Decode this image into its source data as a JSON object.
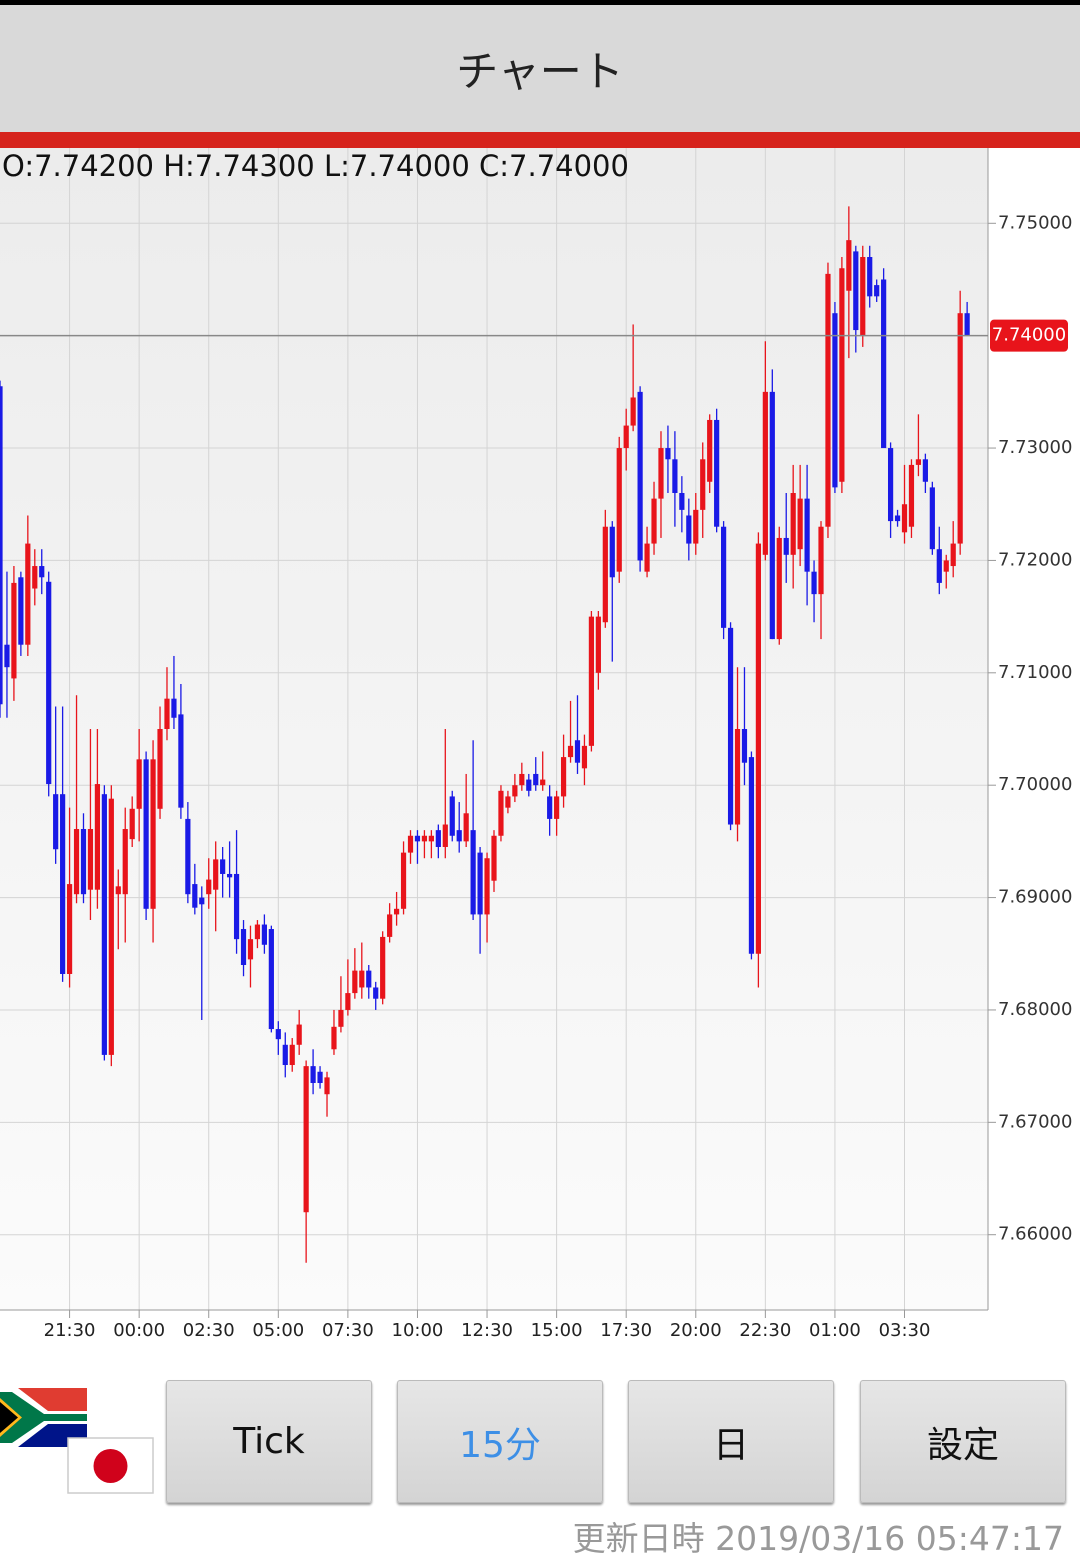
{
  "header": {
    "title": "チャート"
  },
  "chart_data": {
    "type": "candlestick",
    "ohlc_label": "O:7.74200 H:7.74300 L:7.74000 C:7.74000",
    "up_color": "#e8141b",
    "down_color": "#1a1ae6",
    "xlim": [
      0,
      142
    ],
    "xticks": [
      {
        "value": 10,
        "label": "21:30"
      },
      {
        "value": 20,
        "label": "00:00"
      },
      {
        "value": 30,
        "label": "02:30"
      },
      {
        "value": 40,
        "label": "05:00"
      },
      {
        "value": 50,
        "label": "07:30"
      },
      {
        "value": 60,
        "label": "10:00"
      },
      {
        "value": 70,
        "label": "12:30"
      },
      {
        "value": 80,
        "label": "15:00"
      },
      {
        "value": 90,
        "label": "17:30"
      },
      {
        "value": 100,
        "label": "20:00"
      },
      {
        "value": 110,
        "label": "22:30"
      },
      {
        "value": 120,
        "label": "01:00"
      },
      {
        "value": 130,
        "label": "03:30"
      }
    ],
    "ylim": [
      7.6533,
      7.7567
    ],
    "yticks": [
      {
        "value": 7.66,
        "label": "7.66000"
      },
      {
        "value": 7.67,
        "label": "7.67000"
      },
      {
        "value": 7.68,
        "label": "7.68000"
      },
      {
        "value": 7.69,
        "label": "7.69000"
      },
      {
        "value": 7.7,
        "label": "7.70000"
      },
      {
        "value": 7.71,
        "label": "7.71000"
      },
      {
        "value": 7.72,
        "label": "7.72000"
      },
      {
        "value": 7.73,
        "label": "7.73000"
      },
      {
        "value": 7.75,
        "label": "7.75000"
      }
    ],
    "grid": true,
    "last_price": {
      "value": 7.74,
      "label": "7.74000"
    },
    "open": [
      7.7355,
      7.7125,
      7.7095,
      7.7185,
      7.7125,
      7.7175,
      7.7195,
      7.7181,
      7.6992,
      7.6992,
      7.6832,
      7.6903,
      7.6961,
      7.6907,
      7.6907,
      7.6992,
      7.676,
      7.6903,
      7.6903,
      7.6952,
      7.6979,
      7.7023,
      7.689,
      7.6979,
      7.705,
      7.7077,
      7.7063,
      7.697,
      7.6912,
      7.69,
      7.6903,
      7.6907,
      7.6934,
      7.6921,
      7.6921,
      7.6872,
      7.6845,
      7.6863,
      7.6876,
      7.6872,
      7.6783,
      7.6769,
      7.6751,
      7.6769,
      7.662,
      7.675,
      7.6745,
      7.6725,
      7.6765,
      7.6785,
      7.68,
      7.6815,
      7.682,
      7.6835,
      7.682,
      7.681,
      7.6865,
      7.6885,
      7.689,
      7.694,
      7.6955,
      7.695,
      7.695,
      7.696,
      7.6945,
      7.699,
      7.696,
      7.695,
      7.696,
      7.694,
      7.6885,
      7.6915,
      7.6955,
      7.698,
      7.699,
      7.7,
      7.7005,
      7.701,
      7.7,
      7.699,
      7.697,
      7.699,
      7.7025,
      7.704,
      7.7015,
      7.7035,
      7.71,
      7.7145,
      7.723,
      7.719,
      7.73,
      7.732,
      7.735,
      7.719,
      7.7215,
      7.7255,
      7.73,
      7.729,
      7.726,
      7.724,
      7.7215,
      7.7245,
      7.727,
      7.7325,
      7.723,
      7.714,
      7.6965,
      7.705,
      7.7025,
      7.685,
      7.7205,
      7.735,
      7.713,
      7.722,
      7.7205,
      7.721,
      7.7255,
      7.719,
      7.717,
      7.723,
      7.742,
      7.727,
      7.744,
      7.7475,
      7.74,
      7.747,
      7.7445,
      7.745,
      7.73,
      7.724,
      7.7225,
      7.723,
      7.7285,
      7.729,
      7.7265,
      7.721,
      7.719,
      7.7195,
      7.7215,
      7.742
    ],
    "high": [
      7.736,
      7.719,
      7.7195,
      7.719,
      7.724,
      7.721,
      7.721,
      7.719,
      7.707,
      7.707,
      7.698,
      7.708,
      7.6975,
      7.705,
      7.705,
      7.7,
      7.7,
      7.6925,
      7.698,
      7.699,
      7.705,
      7.703,
      7.704,
      7.707,
      7.7105,
      7.7115,
      7.709,
      7.6985,
      7.693,
      7.691,
      7.6935,
      7.695,
      7.6945,
      7.695,
      7.696,
      7.688,
      7.6875,
      7.688,
      7.6885,
      7.6875,
      7.679,
      7.678,
      7.6775,
      7.68,
      7.6755,
      7.6765,
      7.675,
      7.6745,
      7.68,
      7.683,
      7.6845,
      7.6855,
      7.686,
      7.684,
      7.6825,
      7.687,
      7.6895,
      7.6905,
      7.695,
      7.696,
      7.696,
      7.696,
      7.696,
      7.6965,
      7.705,
      7.6995,
      7.6985,
      7.701,
      7.704,
      7.6945,
      7.694,
      7.696,
      7.7,
      7.6995,
      7.701,
      7.702,
      7.701,
      7.7025,
      7.703,
      7.7,
      7.6995,
      7.7045,
      7.7075,
      7.708,
      7.7045,
      7.7155,
      7.7155,
      7.7245,
      7.7235,
      7.731,
      7.7335,
      7.741,
      7.7355,
      7.723,
      7.727,
      7.7315,
      7.732,
      7.7315,
      7.7275,
      7.7255,
      7.726,
      7.7305,
      7.733,
      7.7335,
      7.7235,
      7.7145,
      7.7105,
      7.7105,
      7.703,
      7.7225,
      7.7395,
      7.737,
      7.723,
      7.726,
      7.7285,
      7.7285,
      7.7285,
      7.72,
      7.7235,
      7.7465,
      7.743,
      7.747,
      7.7515,
      7.748,
      7.748,
      7.748,
      7.745,
      7.746,
      7.7305,
      7.7245,
      7.7285,
      7.729,
      7.733,
      7.7295,
      7.727,
      7.723,
      7.7205,
      7.7235,
      7.744,
      7.743
    ],
    "low": [
      7.706,
      7.706,
      7.7075,
      7.7115,
      7.7115,
      7.716,
      7.717,
      7.699,
      7.693,
      7.6825,
      7.682,
      7.6895,
      7.6895,
      7.688,
      7.689,
      7.6755,
      7.675,
      7.6854,
      7.686,
      7.6945,
      7.695,
      7.688,
      7.686,
      7.697,
      7.704,
      7.705,
      7.697,
      7.6895,
      7.6885,
      7.6791,
      7.689,
      7.687,
      7.69,
      7.69,
      7.685,
      7.683,
      7.682,
      7.6855,
      7.685,
      7.678,
      7.676,
      7.674,
      7.6745,
      7.676,
      7.6575,
      7.6725,
      7.673,
      7.6705,
      7.676,
      7.678,
      7.6795,
      7.681,
      7.681,
      7.681,
      7.68,
      7.6805,
      7.686,
      7.6875,
      7.6885,
      7.693,
      7.693,
      7.6935,
      7.6935,
      7.6935,
      7.6935,
      7.695,
      7.694,
      7.6945,
      7.688,
      7.685,
      7.686,
      7.6905,
      7.695,
      7.6975,
      7.6985,
      7.6995,
      7.699,
      7.6995,
      7.6995,
      7.6955,
      7.6955,
      7.698,
      7.702,
      7.701,
      7.7,
      7.703,
      7.7085,
      7.714,
      7.711,
      7.718,
      7.728,
      7.7315,
      7.719,
      7.7185,
      7.7205,
      7.722,
      7.726,
      7.723,
      7.7225,
      7.72,
      7.7205,
      7.722,
      7.726,
      7.7225,
      7.713,
      7.696,
      7.695,
      7.7,
      7.6845,
      7.682,
      7.72,
      7.713,
      7.7125,
      7.718,
      7.7175,
      7.7195,
      7.716,
      7.7145,
      7.713,
      7.722,
      7.726,
      7.726,
      7.738,
      7.7385,
      7.739,
      7.7425,
      7.743,
      7.73,
      7.722,
      7.723,
      7.7215,
      7.722,
      7.7275,
      7.726,
      7.7205,
      7.717,
      7.7175,
      7.7185,
      7.7205,
      7.74
    ],
    "close": [
      7.7072,
      7.7105,
      7.718,
      7.7125,
      7.7215,
      7.7195,
      7.7185,
      7.7001,
      7.6943,
      7.6832,
      7.6912,
      7.6961,
      7.6903,
      7.6961,
      7.7001,
      7.676,
      7.6988,
      7.691,
      7.6961,
      7.6979,
      7.7023,
      7.689,
      7.7023,
      7.705,
      7.7077,
      7.706,
      7.698,
      7.6903,
      7.6891,
      7.6894,
      7.6916,
      7.6934,
      7.6921,
      7.6918,
      7.6863,
      7.684,
      7.6863,
      7.6876,
      7.6858,
      7.6783,
      7.6774,
      7.6751,
      7.6769,
      7.6787,
      7.675,
      7.6735,
      7.6735,
      7.674,
      7.6785,
      7.68,
      7.6815,
      7.6835,
      7.6835,
      7.682,
      7.681,
      7.6865,
      7.6885,
      7.689,
      7.694,
      7.6955,
      7.695,
      7.6955,
      7.6955,
      7.6945,
      7.6965,
      7.6955,
      7.695,
      7.6975,
      7.6885,
      7.6885,
      7.6935,
      7.6955,
      7.6995,
      7.699,
      7.7,
      7.701,
      7.6995,
      7.7,
      7.7005,
      7.697,
      7.699,
      7.7025,
      7.7035,
      7.702,
      7.7035,
      7.715,
      7.715,
      7.723,
      7.7185,
      7.73,
      7.732,
      7.7345,
      7.72,
      7.7215,
      7.7255,
      7.73,
      7.729,
      7.726,
      7.7245,
      7.7215,
      7.7245,
      7.729,
      7.7325,
      7.723,
      7.714,
      7.6965,
      7.705,
      7.702,
      7.685,
      7.7215,
      7.735,
      7.713,
      7.722,
      7.7205,
      7.726,
      7.7255,
      7.719,
      7.717,
      7.723,
      7.7455,
      7.7265,
      7.746,
      7.7485,
      7.7405,
      7.747,
      7.7435,
      7.7435,
      7.73,
      7.7235,
      7.7235,
      7.725,
      7.7285,
      7.729,
      7.727,
      7.721,
      7.718,
      7.72,
      7.7215,
      7.742,
      7.74
    ]
  },
  "buttons": [
    "Tick",
    "15分",
    "日",
    "設定"
  ],
  "active_button": 1,
  "footer": {
    "label": "更新日時",
    "timestamp": "2019/03/16 05:47:17"
  }
}
